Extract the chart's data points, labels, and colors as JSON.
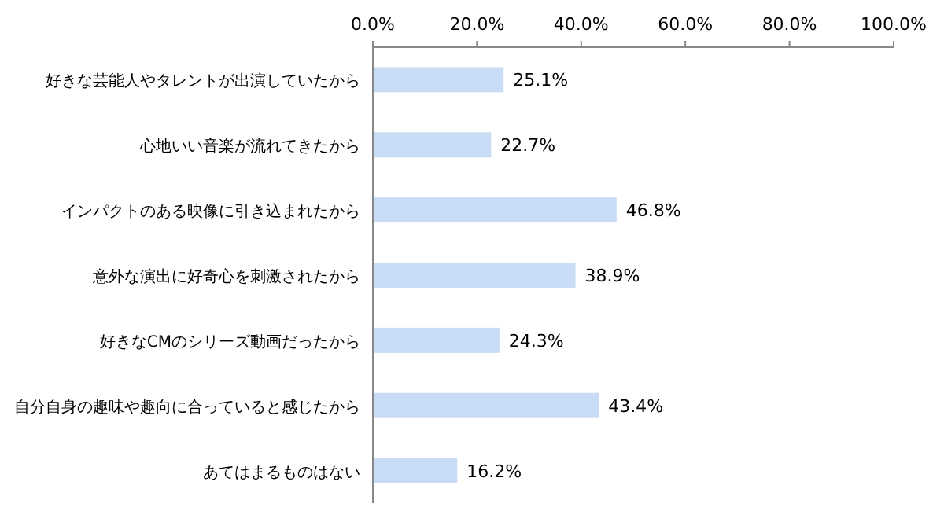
{
  "chart_data": {
    "type": "bar",
    "orientation": "horizontal",
    "categories": [
      "好きな芸能人やタレントが出演していたから",
      "心地いい音楽が流れてきたから",
      "インパクトのある映像に引き込まれたから",
      "意外な演出に好奇心を刺激されたから",
      "好きなCMのシリーズ動画だったから",
      "自分自身の趣味や趣向に合っていると感じたから",
      "あてはまるものはない"
    ],
    "values": [
      25.1,
      22.7,
      46.8,
      38.9,
      24.3,
      43.4,
      16.2
    ],
    "value_labels": [
      "25.1%",
      "22.7%",
      "46.8%",
      "38.9%",
      "24.3%",
      "43.4%",
      "16.2%"
    ],
    "color": "#c9dcf5",
    "xlim": [
      0,
      100
    ],
    "xticks": [
      {
        "value": 0,
        "label": "0.0%"
      },
      {
        "value": 20,
        "label": "20.0%"
      },
      {
        "value": 40,
        "label": "40.0%"
      },
      {
        "value": 60,
        "label": "60.0%"
      },
      {
        "value": 80,
        "label": "80.0%"
      },
      {
        "value": 100,
        "label": "100.0%"
      }
    ],
    "grid": false
  }
}
